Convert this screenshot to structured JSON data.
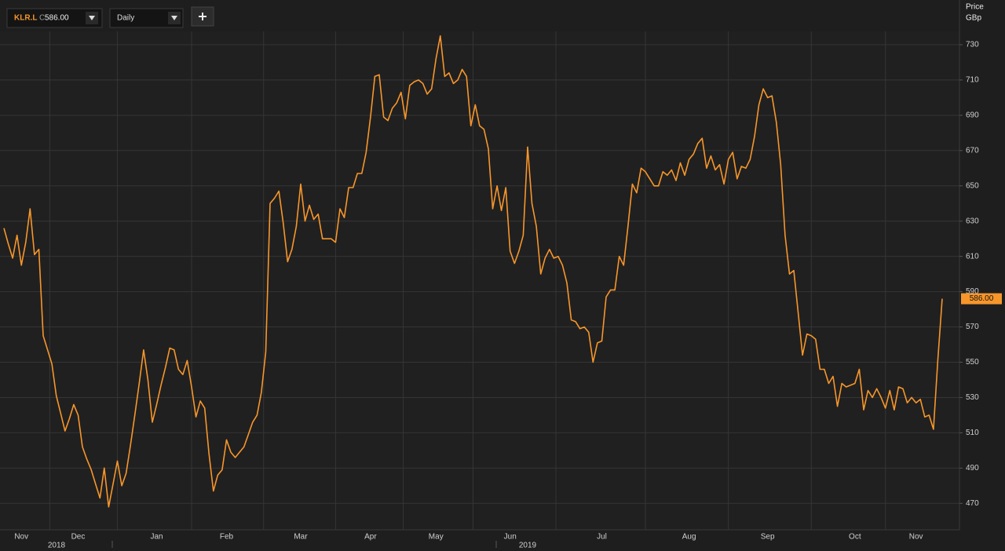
{
  "toolbar": {
    "ric": "KLR.L",
    "close_prefix": "C",
    "close": "586.00",
    "interval": "Daily"
  },
  "chart_data": {
    "type": "line",
    "axis_title": "Price",
    "axis_unit": "GBp",
    "categories": [
      null,
      null,
      null,
      null,
      "Nov",
      null,
      null,
      null,
      null,
      null,
      null,
      null,
      null,
      null,
      null,
      null,
      null,
      "Dec",
      null,
      null,
      null,
      null,
      null,
      null,
      null,
      null,
      null,
      null,
      null,
      null,
      null,
      null,
      null,
      null,
      null,
      "Jan",
      null,
      null,
      null,
      null,
      null,
      null,
      null,
      null,
      null,
      null,
      null,
      null,
      null,
      null,
      null,
      "Feb",
      null,
      null,
      null,
      null,
      null,
      null,
      null,
      null,
      null,
      null,
      null,
      null,
      null,
      null,
      null,
      null,
      "Mar",
      null,
      null,
      null,
      null,
      null,
      null,
      null,
      null,
      null,
      null,
      null,
      null,
      null,
      null,
      null,
      "Apr",
      null,
      null,
      null,
      null,
      null,
      null,
      null,
      null,
      null,
      null,
      null,
      null,
      null,
      null,
      "May",
      null,
      null,
      null,
      null,
      null,
      null,
      null,
      null,
      null,
      null,
      null,
      null,
      null,
      null,
      null,
      null,
      "Jun",
      null,
      null,
      null,
      null,
      null,
      null,
      null,
      null,
      null,
      null,
      null,
      null,
      null,
      null,
      null,
      null,
      null,
      null,
      null,
      null,
      "Jul",
      null,
      null,
      null,
      null,
      null,
      null,
      null,
      null,
      null,
      null,
      null,
      null,
      null,
      null,
      null,
      null,
      null,
      null,
      null,
      "Aug",
      null,
      null,
      null,
      null,
      null,
      null,
      null,
      null,
      null,
      null,
      null,
      null,
      null,
      null,
      null,
      null,
      null,
      "Sep",
      null,
      null,
      null,
      null,
      null,
      null,
      null,
      null,
      null,
      null,
      null,
      null,
      null,
      null,
      null,
      null,
      null,
      null,
      null,
      "Oct",
      null,
      null,
      null,
      null,
      null,
      null,
      null,
      null,
      null,
      null,
      null,
      null,
      null,
      "Nov",
      null,
      null,
      null,
      null,
      null,
      null
    ],
    "year_labels": [
      "2018",
      "2019"
    ],
    "series": [
      {
        "name": "KLR.L",
        "color": "#f7962b",
        "values": [
          626,
          617,
          609,
          622,
          605,
          618,
          637,
          611,
          614,
          565,
          557,
          549,
          531,
          521,
          511,
          518,
          526,
          520,
          502,
          495,
          489,
          481,
          473,
          490,
          468,
          481,
          494,
          480,
          487,
          503,
          520,
          538,
          557,
          540,
          516,
          526,
          537,
          547,
          558,
          557,
          546,
          543,
          551,
          536,
          519,
          528,
          524,
          498,
          477,
          486,
          489,
          506,
          499,
          496,
          499,
          502,
          509,
          516,
          520,
          533,
          556,
          640,
          643,
          647,
          629,
          607,
          614,
          627,
          651,
          630,
          639,
          631,
          634,
          620,
          620,
          620,
          618,
          637,
          632,
          649,
          649,
          657,
          657,
          669,
          689,
          712,
          713,
          689,
          687,
          694,
          697,
          703,
          688,
          707,
          709,
          710,
          708,
          702,
          705,
          722,
          735,
          712,
          714,
          708,
          710,
          716,
          712,
          684,
          696,
          684,
          682,
          671,
          637,
          650,
          636,
          649,
          613,
          606,
          613,
          622,
          672,
          640,
          627,
          600,
          609,
          614,
          609,
          610,
          605,
          595,
          574,
          573,
          569,
          570,
          567,
          550,
          561,
          562,
          587,
          591,
          591,
          610,
          605,
          627,
          651,
          646,
          660,
          658,
          654,
          650,
          650,
          658,
          656,
          659,
          653,
          663,
          656,
          665,
          668,
          674,
          677,
          660,
          667,
          659,
          662,
          651,
          665,
          669,
          654,
          661,
          660,
          665,
          678,
          696,
          705,
          700,
          701,
          686,
          662,
          622,
          600,
          602,
          578,
          554,
          566,
          565,
          563,
          546,
          546,
          538,
          542,
          525,
          538,
          536,
          537,
          538,
          546,
          523,
          534,
          530,
          535,
          530,
          524,
          534,
          523,
          536,
          535,
          527,
          530,
          527,
          529,
          519,
          520,
          512,
          551,
          586
        ]
      }
    ],
    "last_value_label": "586.00",
    "ylim": [
      455,
      742
    ],
    "yticks": [
      470,
      490,
      510,
      530,
      550,
      570,
      590,
      610,
      630,
      650,
      670,
      690,
      710,
      730
    ],
    "grid": true,
    "axis_side": "right"
  }
}
